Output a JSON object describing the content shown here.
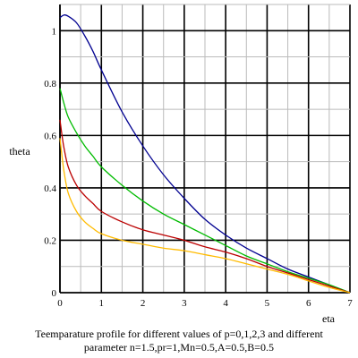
{
  "chart_data": {
    "type": "line",
    "title": "",
    "xlabel": "eta",
    "ylabel": "theta",
    "xlim": [
      0,
      7
    ],
    "ylim": [
      0,
      1.1
    ],
    "xticks": [
      0,
      1,
      2,
      3,
      4,
      5,
      6,
      7
    ],
    "yticks": [
      0,
      0.2,
      0.4,
      0.6,
      0.8,
      1
    ],
    "x_tick_labels": [
      "0",
      "1",
      "2",
      "3",
      "4",
      "5",
      "6",
      "7"
    ],
    "y_tick_labels": [
      "0",
      "0.2",
      "0.4",
      "0.6",
      "0.8",
      "1"
    ],
    "grid": true,
    "grid_minor_step_x": 0.5,
    "grid_minor_step_y": 0.1,
    "series": [
      {
        "color": "#000090",
        "x": [
          0,
          0.1,
          0.2,
          0.4,
          0.6,
          0.8,
          1.0,
          1.5,
          2.0,
          2.5,
          3.0,
          3.5,
          4.0,
          4.5,
          5.0,
          5.5,
          6.0,
          6.5,
          7.0
        ],
        "y": [
          1.05,
          1.06,
          1.055,
          1.03,
          0.98,
          0.92,
          0.85,
          0.69,
          0.56,
          0.45,
          0.36,
          0.28,
          0.22,
          0.17,
          0.13,
          0.09,
          0.06,
          0.03,
          0.0
        ]
      },
      {
        "color": "#00bb00",
        "x": [
          0,
          0.1,
          0.2,
          0.4,
          0.6,
          0.8,
          1.0,
          1.5,
          2.0,
          2.5,
          3.0,
          3.5,
          4.0,
          4.5,
          5.0,
          5.5,
          6.0,
          6.5,
          7.0
        ],
        "y": [
          0.78,
          0.72,
          0.67,
          0.61,
          0.56,
          0.52,
          0.48,
          0.41,
          0.35,
          0.3,
          0.26,
          0.22,
          0.18,
          0.14,
          0.11,
          0.08,
          0.055,
          0.03,
          0.0
        ]
      },
      {
        "color": "#bb0000",
        "x": [
          0,
          0.05,
          0.1,
          0.2,
          0.4,
          0.6,
          0.8,
          1.0,
          1.5,
          2.0,
          2.5,
          3.0,
          3.5,
          4.0,
          4.5,
          5.0,
          5.5,
          6.0,
          6.5,
          7.0
        ],
        "y": [
          0.66,
          0.6,
          0.55,
          0.48,
          0.41,
          0.37,
          0.34,
          0.31,
          0.27,
          0.24,
          0.22,
          0.2,
          0.175,
          0.155,
          0.13,
          0.1,
          0.075,
          0.05,
          0.025,
          0.0
        ]
      },
      {
        "color": "#ffbb00",
        "x": [
          0,
          0.05,
          0.1,
          0.2,
          0.4,
          0.6,
          0.8,
          1.0,
          1.5,
          2.0,
          2.5,
          3.0,
          3.5,
          4.0,
          4.5,
          5.0,
          5.5,
          6.0,
          6.5,
          7.0
        ],
        "y": [
          0.59,
          0.52,
          0.46,
          0.38,
          0.31,
          0.27,
          0.245,
          0.225,
          0.2,
          0.185,
          0.17,
          0.16,
          0.145,
          0.13,
          0.11,
          0.09,
          0.07,
          0.045,
          0.02,
          0.0
        ]
      }
    ]
  },
  "caption": {
    "line1": "Teemparature profile for different values of p=0,1,2,3 and different",
    "line2": "parameter n=1.5,pr=1,Mn=0.5,A=0.5,B=0.5"
  }
}
